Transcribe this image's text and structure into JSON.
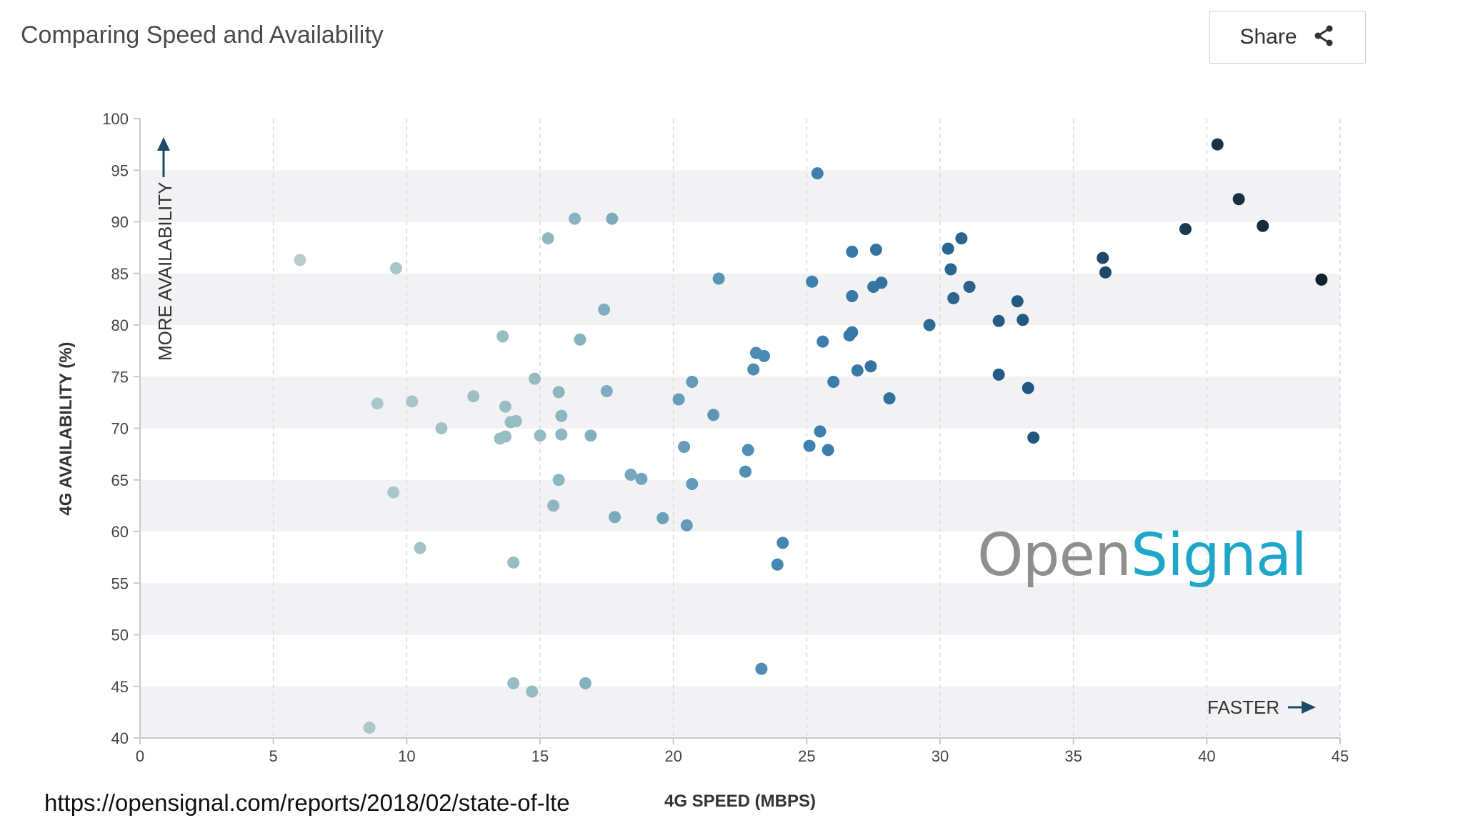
{
  "header": {
    "title": "Comparing Speed and Availability",
    "share_label": "Share",
    "share_icon": "share-icon"
  },
  "footer": {
    "url": "https://opensignal.com/reports/2018/02/state-of-lte"
  },
  "watermark": {
    "part1": "Open",
    "part2": "Signal",
    "color1": "#8f8f8f",
    "color2": "#1fa7c9"
  },
  "annotations": {
    "y_arrow": "MORE AVAILABILITY",
    "x_arrow": "FASTER"
  },
  "chart_data": {
    "type": "scatter",
    "title": "Comparing Speed and Availability",
    "xlabel": "4G SPEED (MBPS)",
    "ylabel": "4G AVAILABILITY (%)",
    "xlim": [
      0,
      45
    ],
    "ylim": [
      40,
      100
    ],
    "xticks": [
      0,
      5,
      10,
      15,
      20,
      25,
      30,
      35,
      40,
      45
    ],
    "yticks": [
      40,
      45,
      50,
      55,
      60,
      65,
      70,
      75,
      80,
      85,
      90,
      95,
      100
    ],
    "grid": "dashed vertical lines, alternating horizontal bands",
    "color_scale": "point color darkens as speed increases (light grey-green to dark navy)",
    "points": [
      {
        "x": 6.0,
        "y": 86.3
      },
      {
        "x": 8.6,
        "y": 41.0
      },
      {
        "x": 8.9,
        "y": 72.4
      },
      {
        "x": 9.5,
        "y": 63.8
      },
      {
        "x": 9.6,
        "y": 85.5
      },
      {
        "x": 10.2,
        "y": 72.6
      },
      {
        "x": 10.5,
        "y": 58.4
      },
      {
        "x": 11.3,
        "y": 70.0
      },
      {
        "x": 12.5,
        "y": 73.1
      },
      {
        "x": 13.5,
        "y": 69.0
      },
      {
        "x": 13.6,
        "y": 78.9
      },
      {
        "x": 13.7,
        "y": 69.2
      },
      {
        "x": 13.7,
        "y": 72.1
      },
      {
        "x": 13.9,
        "y": 70.6
      },
      {
        "x": 14.0,
        "y": 45.3
      },
      {
        "x": 14.0,
        "y": 57.0
      },
      {
        "x": 14.1,
        "y": 70.7
      },
      {
        "x": 14.7,
        "y": 44.5
      },
      {
        "x": 14.8,
        "y": 74.8
      },
      {
        "x": 15.0,
        "y": 69.3
      },
      {
        "x": 15.3,
        "y": 88.4
      },
      {
        "x": 15.5,
        "y": 62.5
      },
      {
        "x": 15.7,
        "y": 65.0
      },
      {
        "x": 15.7,
        "y": 73.5
      },
      {
        "x": 15.8,
        "y": 69.4
      },
      {
        "x": 15.8,
        "y": 71.2
      },
      {
        "x": 16.3,
        "y": 90.3
      },
      {
        "x": 16.5,
        "y": 78.6
      },
      {
        "x": 16.7,
        "y": 45.3
      },
      {
        "x": 16.9,
        "y": 69.3
      },
      {
        "x": 17.4,
        "y": 81.5
      },
      {
        "x": 17.5,
        "y": 73.6
      },
      {
        "x": 17.7,
        "y": 90.3
      },
      {
        "x": 17.8,
        "y": 61.4
      },
      {
        "x": 18.4,
        "y": 65.5
      },
      {
        "x": 18.8,
        "y": 65.1
      },
      {
        "x": 19.6,
        "y": 61.3
      },
      {
        "x": 20.2,
        "y": 72.8
      },
      {
        "x": 20.4,
        "y": 68.2
      },
      {
        "x": 20.5,
        "y": 60.6
      },
      {
        "x": 20.7,
        "y": 64.6
      },
      {
        "x": 20.7,
        "y": 74.5
      },
      {
        "x": 21.5,
        "y": 71.3
      },
      {
        "x": 21.7,
        "y": 84.5
      },
      {
        "x": 22.7,
        "y": 65.8
      },
      {
        "x": 22.8,
        "y": 67.9
      },
      {
        "x": 23.0,
        "y": 75.7
      },
      {
        "x": 23.1,
        "y": 77.3
      },
      {
        "x": 23.3,
        "y": 46.7
      },
      {
        "x": 23.4,
        "y": 77.0
      },
      {
        "x": 23.9,
        "y": 56.8
      },
      {
        "x": 24.1,
        "y": 58.9
      },
      {
        "x": 25.1,
        "y": 68.3
      },
      {
        "x": 25.2,
        "y": 84.2
      },
      {
        "x": 25.4,
        "y": 94.7
      },
      {
        "x": 25.5,
        "y": 69.7
      },
      {
        "x": 25.6,
        "y": 78.4
      },
      {
        "x": 25.8,
        "y": 67.9
      },
      {
        "x": 26.0,
        "y": 74.5
      },
      {
        "x": 26.6,
        "y": 79.0
      },
      {
        "x": 26.7,
        "y": 82.8
      },
      {
        "x": 26.7,
        "y": 79.3
      },
      {
        "x": 26.7,
        "y": 87.1
      },
      {
        "x": 26.9,
        "y": 75.6
      },
      {
        "x": 27.4,
        "y": 76.0
      },
      {
        "x": 27.5,
        "y": 83.7
      },
      {
        "x": 27.6,
        "y": 87.3
      },
      {
        "x": 27.8,
        "y": 84.1
      },
      {
        "x": 28.1,
        "y": 72.9
      },
      {
        "x": 29.6,
        "y": 80.0
      },
      {
        "x": 30.3,
        "y": 87.4
      },
      {
        "x": 30.4,
        "y": 85.4
      },
      {
        "x": 30.5,
        "y": 82.6
      },
      {
        "x": 30.8,
        "y": 88.4
      },
      {
        "x": 31.1,
        "y": 83.7
      },
      {
        "x": 32.2,
        "y": 80.4
      },
      {
        "x": 32.2,
        "y": 75.2
      },
      {
        "x": 32.9,
        "y": 82.3
      },
      {
        "x": 33.1,
        "y": 80.5
      },
      {
        "x": 33.3,
        "y": 73.9
      },
      {
        "x": 33.5,
        "y": 69.1
      },
      {
        "x": 36.1,
        "y": 86.5
      },
      {
        "x": 36.2,
        "y": 85.1
      },
      {
        "x": 39.2,
        "y": 89.3
      },
      {
        "x": 40.4,
        "y": 97.5
      },
      {
        "x": 41.2,
        "y": 92.2
      },
      {
        "x": 42.1,
        "y": 89.6
      },
      {
        "x": 44.3,
        "y": 84.4
      }
    ]
  }
}
